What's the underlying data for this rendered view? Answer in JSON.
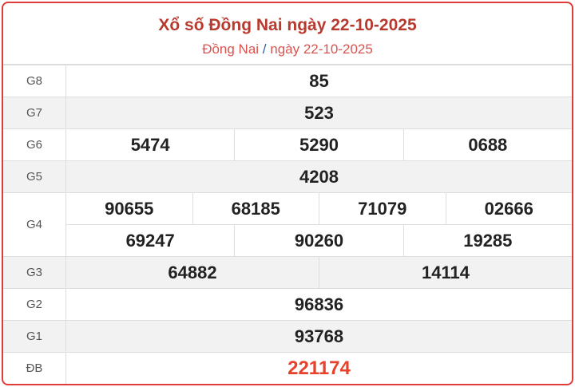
{
  "header": {
    "title": "Xổ số Đồng Nai ngày 22-10-2025",
    "breadcrumb_province": "Đồng Nai",
    "breadcrumb_sep": "/",
    "breadcrumb_date": "ngày 22-10-2025"
  },
  "colors": {
    "accent": "#e03c3c",
    "title": "#b83a2f",
    "special": "#e8412c"
  },
  "prizes": {
    "g8": {
      "label": "G8",
      "values": [
        "85"
      ]
    },
    "g7": {
      "label": "G7",
      "values": [
        "523"
      ]
    },
    "g6": {
      "label": "G6",
      "values": [
        "5474",
        "5290",
        "0688"
      ]
    },
    "g5": {
      "label": "G5",
      "values": [
        "4208"
      ]
    },
    "g4": {
      "label": "G4",
      "values": [
        "90655",
        "68185",
        "71079",
        "02666",
        "69247",
        "90260",
        "19285"
      ]
    },
    "g3": {
      "label": "G3",
      "values": [
        "64882",
        "14114"
      ]
    },
    "g2": {
      "label": "G2",
      "values": [
        "96836"
      ]
    },
    "g1": {
      "label": "G1",
      "values": [
        "93768"
      ]
    },
    "db": {
      "label": "ĐB",
      "values": [
        "221174"
      ]
    }
  }
}
